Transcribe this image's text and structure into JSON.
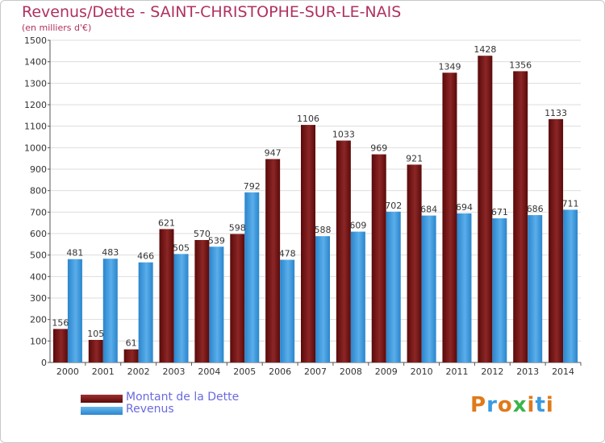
{
  "title": "Revenus/Dette - SAINT-CHRISTOPHE-SUR-LE-NAIS",
  "subtitle": "(en milliers d'€)",
  "logo_text": "Proxiti",
  "colors": {
    "dette": "#7a1414",
    "revenus": "#3a9be0",
    "title": "#b03060",
    "legend_text": "#6a6ae0"
  },
  "chart_data": {
    "type": "bar",
    "title": "Revenus/Dette - SAINT-CHRISTOPHE-SUR-LE-NAIS",
    "ylabel": "(en milliers d'€)",
    "categories": [
      "2000",
      "2001",
      "2002",
      "2003",
      "2004",
      "2005",
      "2006",
      "2007",
      "2008",
      "2009",
      "2010",
      "2011",
      "2012",
      "2013",
      "2014"
    ],
    "series": [
      {
        "name": "Montant de la Dette",
        "values": [
          156,
          105,
          61,
          621,
          570,
          598,
          947,
          1106,
          1033,
          969,
          921,
          1349,
          1428,
          1356,
          1133
        ]
      },
      {
        "name": "Revenus",
        "values": [
          481,
          483,
          466,
          505,
          539,
          792,
          478,
          588,
          609,
          702,
          684,
          694,
          671,
          686,
          711
        ]
      }
    ],
    "ylim": [
      0,
      1500
    ],
    "yticks": [
      0,
      100,
      200,
      300,
      400,
      500,
      600,
      700,
      800,
      900,
      1000,
      1100,
      1200,
      1300,
      1400,
      1500
    ],
    "grid": true,
    "legend": "bottom-left"
  }
}
